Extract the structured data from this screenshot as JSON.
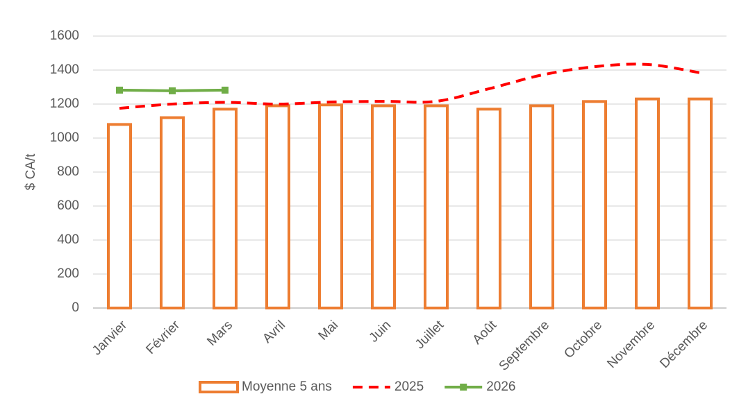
{
  "chart_data": {
    "type": "bar",
    "y_label": "$ CA/t",
    "categories": [
      "Janvier",
      "Février",
      "Mars",
      "Avril",
      "Mai",
      "Juin",
      "Juillet",
      "Août",
      "Septembre",
      "Octobre",
      "Novembre",
      "Décembre"
    ],
    "series": [
      {
        "name": "Moyenne 5 ans",
        "type": "bar",
        "color": "#ed7d31",
        "values": [
          1080,
          1120,
          1170,
          1190,
          1195,
          1190,
          1190,
          1170,
          1190,
          1215,
          1230,
          1230
        ]
      },
      {
        "name": "2025",
        "type": "line",
        "style": "dashed",
        "smooth": true,
        "color": "#ff0000",
        "values": [
          1175,
          1200,
          1210,
          1200,
          1212,
          1216,
          1216,
          1290,
          1371,
          1420,
          1433,
          1384
        ]
      },
      {
        "name": "2026",
        "type": "line",
        "marker": "square",
        "color": "#70ad47",
        "values": [
          1282,
          1278,
          1282,
          null,
          null,
          null,
          null,
          null,
          null,
          null,
          null,
          null
        ]
      }
    ],
    "ylim": [
      0,
      1600
    ],
    "yticks": [
      0,
      200,
      400,
      600,
      800,
      1000,
      1200,
      1400,
      1600
    ],
    "grid": true,
    "legend": "bottom"
  }
}
